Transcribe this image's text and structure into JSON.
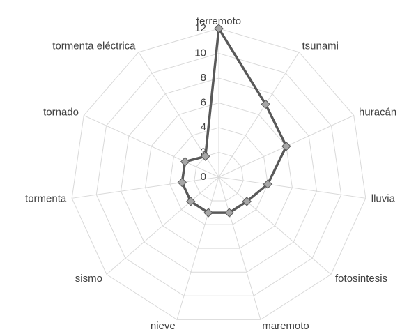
{
  "chart_data": {
    "type": "radar",
    "categories": [
      "terremoto",
      "tsunami",
      "huracán",
      "lluvia",
      "fotosintesis",
      "maremoto",
      "nieve",
      "sismo",
      "tormenta",
      "tornado",
      "tormenta eléctrica"
    ],
    "values": [
      12,
      7,
      6,
      4,
      3,
      3,
      3,
      3,
      3,
      3,
      2
    ],
    "color": "#595959",
    "marker_color": "#a6a6a6",
    "ylim": [
      0,
      12
    ],
    "yticks": [
      0,
      2,
      4,
      6,
      8,
      10,
      12
    ],
    "grid": true
  }
}
